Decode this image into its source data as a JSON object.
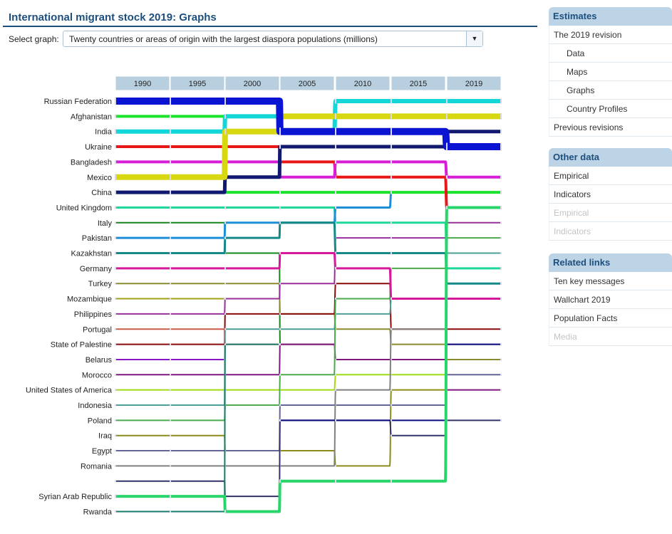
{
  "header": {
    "title": "International migrant stock 2019: Graphs"
  },
  "select": {
    "label": "Select graph:",
    "value": "Twenty countries or areas of origin with the largest diaspora populations (millions)"
  },
  "sidebar": {
    "estimates": {
      "title": "Estimates",
      "items": [
        {
          "label": "The 2019 revision",
          "sub": false,
          "enabled": true
        },
        {
          "label": "Data",
          "sub": true,
          "enabled": true
        },
        {
          "label": "Maps",
          "sub": true,
          "enabled": true
        },
        {
          "label": "Graphs",
          "sub": true,
          "enabled": true
        },
        {
          "label": "Country Profiles",
          "sub": true,
          "enabled": true
        },
        {
          "label": "Previous revisions",
          "sub": false,
          "enabled": true
        }
      ]
    },
    "other": {
      "title": "Other data",
      "items": [
        {
          "label": "Empirical",
          "sub": false,
          "enabled": true
        },
        {
          "label": "Indicators",
          "sub": false,
          "enabled": true
        },
        {
          "label": "Empirical",
          "sub": false,
          "enabled": false
        },
        {
          "label": "Indicators",
          "sub": false,
          "enabled": false
        }
      ]
    },
    "related": {
      "title": "Related links",
      "items": [
        {
          "label": "Ten key messages",
          "sub": false,
          "enabled": true
        },
        {
          "label": "Wallchart 2019",
          "sub": false,
          "enabled": true
        },
        {
          "label": "Population Facts",
          "sub": false,
          "enabled": true
        },
        {
          "label": "Media",
          "sub": false,
          "enabled": false
        }
      ]
    }
  },
  "chart_data": {
    "type": "bump",
    "years": [
      "1990",
      "1995",
      "2000",
      "2005",
      "2010",
      "2015",
      "2019"
    ],
    "row_labels": [
      "Russian Federation",
      "Afghanistan",
      "India",
      "Ukraine",
      "Bangladesh",
      "Mexico",
      "China",
      "United Kingdom",
      "Italy",
      "Pakistan",
      "Kazakhstan",
      "Germany",
      "Turkey",
      "Mozambique",
      "Philippines",
      "Portugal",
      "State of Palestine",
      "Belarus",
      "Morocco",
      "United States of America",
      "Indonesia",
      "Poland",
      "Iraq",
      "Egypt",
      "Romania",
      "",
      "Syrian Arab Republic",
      "Rwanda"
    ],
    "series": [
      {
        "name": "Russian Federation",
        "color": "#0a14d2",
        "width": 10,
        "ranks": [
          1,
          1,
          1,
          3,
          3,
          3,
          4
        ]
      },
      {
        "name": "Afghanistan",
        "color": "#19e32a",
        "width": 4,
        "ranks": [
          2,
          2,
          7,
          7,
          7,
          7,
          7
        ]
      },
      {
        "name": "India",
        "color": "#12d6d8",
        "width": 6,
        "ranks": [
          3,
          3,
          2,
          3,
          1,
          1,
          1
        ]
      },
      {
        "name": "Ukraine",
        "color": "#e81818",
        "width": 4,
        "ranks": [
          4,
          4,
          4,
          5,
          6,
          6,
          8
        ]
      },
      {
        "name": "Bangladesh",
        "color": "#d61fd6",
        "width": 4,
        "ranks": [
          5,
          5,
          5,
          6,
          5,
          5,
          6
        ]
      },
      {
        "name": "Mexico",
        "color": "#d8d812",
        "width": 8,
        "ranks": [
          6,
          6,
          3,
          2,
          2,
          2,
          2
        ]
      },
      {
        "name": "China",
        "color": "#121970",
        "width": 5,
        "ranks": [
          7,
          7,
          6,
          4,
          4,
          4,
          3
        ]
      },
      {
        "name": "United Kingdom",
        "color": "#1ed79a",
        "width": 3,
        "ranks": [
          8,
          8,
          8,
          8,
          9,
          9,
          12
        ]
      },
      {
        "name": "Italy",
        "color": "#15871a",
        "width": 2,
        "ranks": [
          9,
          9,
          11,
          17,
          null,
          null,
          null
        ]
      },
      {
        "name": "Pakistan",
        "color": "#1e8fd6",
        "width": 3,
        "ranks": [
          10,
          10,
          9,
          9,
          8,
          7,
          7
        ]
      },
      {
        "name": "Kazakhstan",
        "color": "#158888",
        "width": 3,
        "ranks": [
          11,
          11,
          10,
          9,
          11,
          11,
          13
        ]
      },
      {
        "name": "Germany",
        "color": "#d6189a",
        "width": 3,
        "ranks": [
          12,
          12,
          12,
          11,
          12,
          14,
          14
        ]
      },
      {
        "name": "Turkey",
        "color": "#8a8a2e",
        "width": 2,
        "ranks": [
          13,
          13,
          13,
          15,
          16,
          17,
          18
        ]
      },
      {
        "name": "Mozambique",
        "color": "#a0a012",
        "width": 2,
        "ranks": [
          14,
          14,
          null,
          null,
          null,
          null,
          null
        ]
      },
      {
        "name": "Philippines",
        "color": "#9a2e9a",
        "width": 2,
        "ranks": [
          15,
          15,
          14,
          13,
          10,
          10,
          9
        ]
      },
      {
        "name": "Portugal",
        "color": "#c85a48",
        "width": 2,
        "ranks": [
          16,
          16,
          17,
          17,
          null,
          null,
          null
        ]
      },
      {
        "name": "State of Palestine",
        "color": "#8a0a0a",
        "width": 2,
        "ranks": [
          17,
          17,
          15,
          15,
          13,
          16,
          16
        ]
      },
      {
        "name": "Belarus",
        "color": "#8a16c4",
        "width": 2,
        "ranks": [
          18,
          18,
          null,
          null,
          null,
          null,
          null
        ]
      },
      {
        "name": "Morocco",
        "color": "#801880",
        "width": 2,
        "ranks": [
          19,
          19,
          19,
          17,
          18,
          18,
          20
        ]
      },
      {
        "name": "United States of America",
        "color": "#a0dc14",
        "width": 2,
        "ranks": [
          20,
          20,
          20,
          20,
          19,
          19,
          null
        ]
      },
      {
        "name": "Indonesia",
        "color": "#4aa096",
        "width": 2,
        "ranks": [
          21,
          21,
          16,
          16,
          15,
          14,
          11
        ]
      },
      {
        "name": "Poland",
        "color": "#4caa4c",
        "width": 2,
        "ranks": [
          22,
          22,
          21,
          19,
          14,
          12,
          10
        ]
      },
      {
        "name": "Iraq",
        "color": "#8c8c1a",
        "width": 2,
        "ranks": [
          23,
          23,
          24,
          24,
          25,
          20,
          null
        ]
      },
      {
        "name": "Egypt",
        "color": "#646496",
        "width": 2,
        "ranks": [
          24,
          24,
          24,
          21,
          21,
          21,
          19
        ]
      },
      {
        "name": "Romania",
        "color": "#808080",
        "width": 2,
        "ranks": [
          25,
          25,
          25,
          25,
          20,
          16,
          17
        ]
      },
      {
        "name": "",
        "color": "#33336a",
        "width": 2,
        "ranks": [
          26,
          26,
          27,
          22,
          22,
          23,
          22
        ]
      },
      {
        "name": "Syrian Arab Republic",
        "color": "#27d56a",
        "width": 4,
        "ranks": [
          27,
          27,
          28,
          26,
          26,
          26,
          8
        ]
      },
      {
        "name": "Rwanda",
        "color": "#1a7a6a",
        "width": 2,
        "ranks": [
          28,
          28,
          17,
          null,
          null,
          null,
          null
        ]
      },
      {
        "name": "",
        "color": "#0a0a80",
        "width": 2,
        "ranks": [
          null,
          null,
          null,
          22,
          22,
          22,
          17
        ]
      }
    ]
  }
}
